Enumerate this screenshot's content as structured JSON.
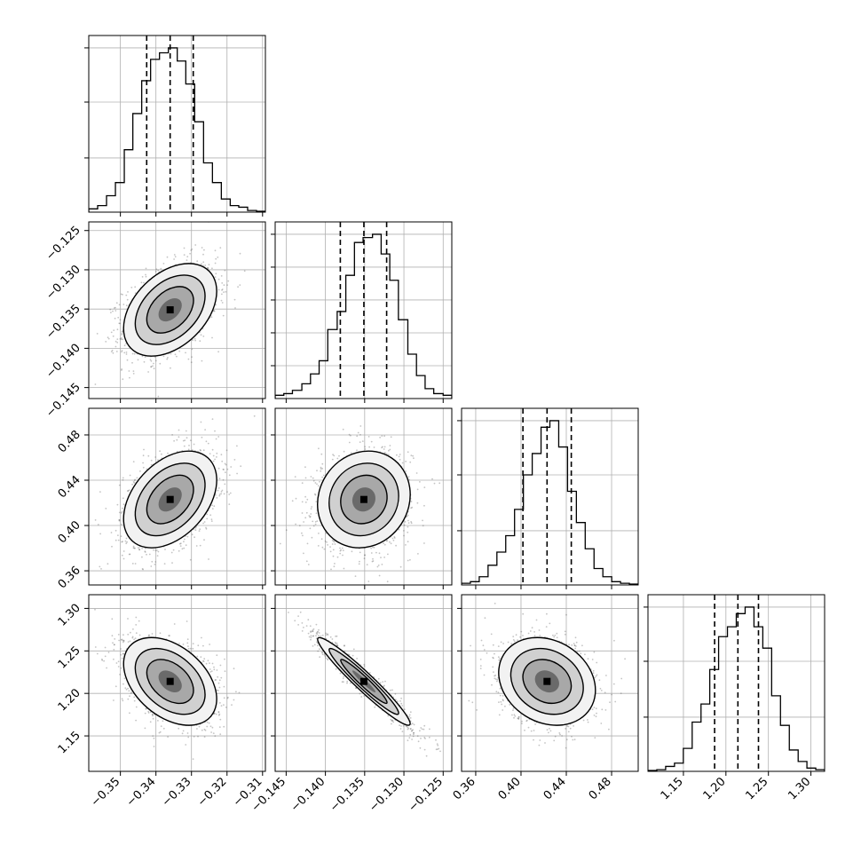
{
  "chart_data": {
    "type": "corner",
    "description_of_panels": "lower-triangle 2D scatter + density contours, diagonal 1D histograms with 16/50/84 percentile dashed lines",
    "grid": true,
    "parameters": [
      {
        "index": 0,
        "ticks": [
          -0.35,
          -0.34,
          -0.33,
          -0.32,
          -0.31
        ],
        "tick_labels": [
          "−0.35",
          "−0.34",
          "−0.33",
          "−0.32",
          "−0.31"
        ],
        "range": [
          -0.3589,
          -0.3092
        ]
      },
      {
        "index": 1,
        "ticks": [
          -0.145,
          -0.14,
          -0.135,
          -0.13,
          -0.125
        ],
        "tick_labels": [
          "−0.145",
          "−0.140",
          "−0.135",
          "−0.130",
          "−0.125"
        ],
        "range": [
          -0.1464,
          -0.1239
        ]
      },
      {
        "index": 2,
        "ticks": [
          0.36,
          0.4,
          0.44,
          0.48
        ],
        "tick_labels": [
          "0.36",
          "0.40",
          "0.44",
          "0.48"
        ],
        "range": [
          0.3475,
          0.5035
        ]
      },
      {
        "index": 3,
        "ticks": [
          1.15,
          1.2,
          1.25,
          1.3
        ],
        "tick_labels": [
          "1.15",
          "1.20",
          "1.25",
          "1.30"
        ],
        "range": [
          1.1083,
          1.3161
        ]
      }
    ],
    "marginals": [
      {
        "param": 0,
        "quantiles": [
          -0.3426,
          -0.336,
          -0.3295
        ],
        "bin_edges": [
          -0.3589,
          -0.3564,
          -0.3539,
          -0.3514,
          -0.3489,
          -0.3465,
          -0.344,
          -0.3415,
          -0.339,
          -0.3365,
          -0.334,
          -0.3316,
          -0.3291,
          -0.3266,
          -0.3241,
          -0.3216,
          -0.3191,
          -0.3167,
          -0.3142,
          -0.3117,
          -0.3092
        ],
        "counts": [
          0.02,
          0.04,
          0.1,
          0.18,
          0.38,
          0.6,
          0.8,
          0.93,
          0.97,
          1.0,
          0.92,
          0.78,
          0.55,
          0.3,
          0.18,
          0.08,
          0.04,
          0.03,
          0.01,
          0.005
        ],
        "ytick_fracs": [
          0.33,
          0.67,
          1.0
        ]
      },
      {
        "param": 1,
        "quantiles": [
          -0.1381,
          -0.1351,
          -0.1322
        ],
        "bin_edges": [
          -0.1464,
          -0.1453,
          -0.1442,
          -0.143,
          -0.1419,
          -0.1408,
          -0.1397,
          -0.1385,
          -0.1374,
          -0.1363,
          -0.1352,
          -0.134,
          -0.1329,
          -0.1318,
          -0.1307,
          -0.1295,
          -0.1284,
          -0.1273,
          -0.1262,
          -0.125,
          -0.1239
        ],
        "counts": [
          0.02,
          0.03,
          0.05,
          0.09,
          0.15,
          0.23,
          0.42,
          0.53,
          0.75,
          0.95,
          0.98,
          1.0,
          0.88,
          0.72,
          0.48,
          0.27,
          0.14,
          0.06,
          0.03,
          0.02
        ],
        "ytick_fracs": [
          0.2,
          0.4,
          0.6,
          0.8,
          1.0
        ]
      },
      {
        "param": 2,
        "quantiles": [
          0.4017,
          0.423,
          0.4444
        ],
        "bin_edges": [
          0.3475,
          0.3553,
          0.3631,
          0.3709,
          0.3787,
          0.3865,
          0.3943,
          0.4021,
          0.4099,
          0.4177,
          0.4255,
          0.4333,
          0.4411,
          0.4489,
          0.4567,
          0.4645,
          0.4723,
          0.4801,
          0.4879,
          0.4957,
          0.5035
        ],
        "counts": [
          0.01,
          0.02,
          0.05,
          0.12,
          0.2,
          0.3,
          0.46,
          0.67,
          0.8,
          0.96,
          1.0,
          0.84,
          0.57,
          0.38,
          0.22,
          0.1,
          0.05,
          0.02,
          0.01,
          0.005
        ],
        "ytick_fracs": [
          0.33,
          0.67,
          1.0
        ]
      },
      {
        "param": 3,
        "quantiles": [
          1.1867,
          1.2141,
          1.2383
        ],
        "bin_edges": [
          1.1083,
          1.1187,
          1.1291,
          1.1395,
          1.1499,
          1.1603,
          1.1707,
          1.181,
          1.1914,
          1.2018,
          1.2122,
          1.2226,
          1.233,
          1.2434,
          1.2538,
          1.2642,
          1.2746,
          1.285,
          1.2953,
          1.3057,
          1.3161
        ],
        "counts": [
          0.005,
          0.01,
          0.03,
          0.05,
          0.14,
          0.3,
          0.41,
          0.62,
          0.82,
          0.88,
          0.96,
          1.0,
          0.88,
          0.75,
          0.46,
          0.28,
          0.13,
          0.06,
          0.02,
          0.01
        ],
        "ytick_fracs": [
          0.33,
          0.67,
          1.0
        ]
      }
    ],
    "correlations": [
      {
        "x": 0,
        "y": 1,
        "rho": 0.4
      },
      {
        "x": 0,
        "y": 2,
        "rho": 0.4
      },
      {
        "x": 0,
        "y": 3,
        "rho": -0.4
      },
      {
        "x": 1,
        "y": 2,
        "rho": 0.1
      },
      {
        "x": 1,
        "y": 3,
        "rho": -0.96
      },
      {
        "x": 2,
        "y": 3,
        "rho": -0.2
      }
    ],
    "contour_levels_sigma": [
      0.5,
      1.0,
      1.5,
      2.0
    ]
  }
}
